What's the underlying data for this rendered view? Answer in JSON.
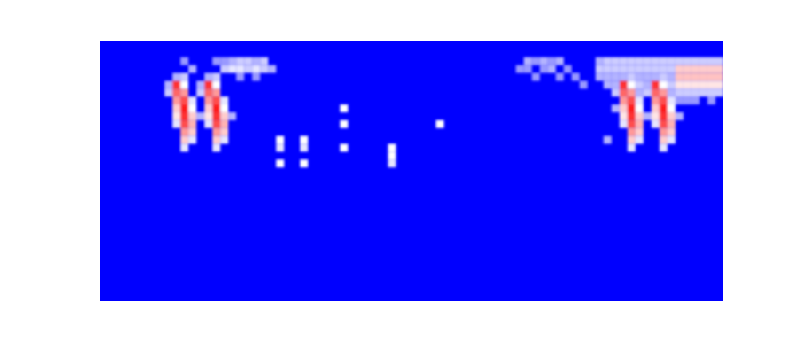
{
  "chart_data": {
    "type": "heatmap",
    "tick_labels": false,
    "xlim": [
      0,
      78
    ],
    "ylim": [
      33,
      0
    ],
    "zlim": [
      0,
      1
    ],
    "cells": [
      [
        9,
        4,
        0.35
      ],
      [
        10,
        4,
        0.4
      ],
      [
        9,
        5,
        0.9
      ],
      [
        10,
        5,
        0.5
      ],
      [
        8,
        5,
        0.35
      ],
      [
        9,
        6,
        0.8
      ],
      [
        10,
        6,
        0.7
      ],
      [
        8,
        6,
        0.4
      ],
      [
        9,
        7,
        0.7
      ],
      [
        10,
        7,
        0.85
      ],
      [
        11,
        7,
        0.45
      ],
      [
        9,
        8,
        0.6
      ],
      [
        10,
        8,
        0.95
      ],
      [
        11,
        8,
        0.5
      ],
      [
        9,
        9,
        0.55
      ],
      [
        10,
        9,
        0.9
      ],
      [
        11,
        9,
        0.6
      ],
      [
        12,
        9,
        0.35
      ],
      [
        9,
        10,
        0.45
      ],
      [
        10,
        10,
        0.85
      ],
      [
        11,
        10,
        0.65
      ],
      [
        10,
        11,
        0.7
      ],
      [
        11,
        11,
        0.6
      ],
      [
        10,
        12,
        0.6
      ],
      [
        11,
        12,
        0.45
      ],
      [
        10,
        13,
        0.45
      ],
      [
        13,
        4,
        0.35
      ],
      [
        14,
        4,
        0.4
      ],
      [
        13,
        5,
        0.9
      ],
      [
        14,
        5,
        0.5
      ],
      [
        12,
        5,
        0.35
      ],
      [
        13,
        6,
        0.8
      ],
      [
        14,
        6,
        0.7
      ],
      [
        12,
        6,
        0.4
      ],
      [
        13,
        7,
        0.7
      ],
      [
        14,
        7,
        0.85
      ],
      [
        15,
        7,
        0.45
      ],
      [
        13,
        8,
        0.6
      ],
      [
        14,
        8,
        0.95
      ],
      [
        15,
        8,
        0.5
      ],
      [
        13,
        9,
        0.55
      ],
      [
        14,
        9,
        0.9
      ],
      [
        15,
        9,
        0.6
      ],
      [
        16,
        9,
        0.35
      ],
      [
        13,
        10,
        0.45
      ],
      [
        14,
        10,
        0.85
      ],
      [
        15,
        10,
        0.65
      ],
      [
        14,
        11,
        0.7
      ],
      [
        15,
        11,
        0.6
      ],
      [
        14,
        12,
        0.6
      ],
      [
        15,
        12,
        0.45
      ],
      [
        14,
        13,
        0.45
      ],
      [
        65,
        4,
        0.35
      ],
      [
        66,
        4,
        0.4
      ],
      [
        65,
        5,
        0.9
      ],
      [
        66,
        5,
        0.5
      ],
      [
        64,
        5,
        0.35
      ],
      [
        65,
        6,
        0.8
      ],
      [
        66,
        6,
        0.7
      ],
      [
        64,
        6,
        0.4
      ],
      [
        65,
        7,
        0.7
      ],
      [
        66,
        7,
        0.85
      ],
      [
        67,
        7,
        0.45
      ],
      [
        65,
        8,
        0.6
      ],
      [
        66,
        8,
        0.95
      ],
      [
        67,
        8,
        0.5
      ],
      [
        65,
        9,
        0.55
      ],
      [
        66,
        9,
        0.9
      ],
      [
        67,
        9,
        0.6
      ],
      [
        68,
        9,
        0.35
      ],
      [
        65,
        10,
        0.45
      ],
      [
        66,
        10,
        0.85
      ],
      [
        67,
        10,
        0.65
      ],
      [
        66,
        11,
        0.7
      ],
      [
        67,
        11,
        0.6
      ],
      [
        66,
        12,
        0.6
      ],
      [
        67,
        12,
        0.45
      ],
      [
        66,
        13,
        0.45
      ],
      [
        69,
        4,
        0.35
      ],
      [
        70,
        4,
        0.4
      ],
      [
        69,
        5,
        0.9
      ],
      [
        70,
        5,
        0.5
      ],
      [
        68,
        5,
        0.35
      ],
      [
        69,
        6,
        0.8
      ],
      [
        70,
        6,
        0.7
      ],
      [
        68,
        6,
        0.4
      ],
      [
        69,
        7,
        0.7
      ],
      [
        70,
        7,
        0.85
      ],
      [
        71,
        7,
        0.45
      ],
      [
        69,
        8,
        0.6
      ],
      [
        70,
        8,
        0.95
      ],
      [
        71,
        8,
        0.5
      ],
      [
        69,
        9,
        0.55
      ],
      [
        70,
        9,
        0.9
      ],
      [
        71,
        9,
        0.6
      ],
      [
        72,
        9,
        0.35
      ],
      [
        69,
        10,
        0.45
      ],
      [
        70,
        10,
        0.85
      ],
      [
        71,
        10,
        0.65
      ],
      [
        70,
        11,
        0.7
      ],
      [
        71,
        11,
        0.6
      ],
      [
        70,
        12,
        0.6
      ],
      [
        71,
        12,
        0.45
      ],
      [
        70,
        13,
        0.45
      ],
      [
        10,
        2,
        0.3
      ],
      [
        14,
        2,
        0.3
      ],
      [
        11,
        3,
        0.35
      ],
      [
        15,
        2,
        0.3
      ],
      [
        15,
        3,
        0.4
      ],
      [
        16,
        2,
        0.35
      ],
      [
        16,
        3,
        0.45
      ],
      [
        17,
        2,
        0.4
      ],
      [
        17,
        3,
        0.45
      ],
      [
        18,
        2,
        0.4
      ],
      [
        18,
        3,
        0.4
      ],
      [
        19,
        2,
        0.35
      ],
      [
        19,
        3,
        0.45
      ],
      [
        20,
        2,
        0.4
      ],
      [
        20,
        3,
        0.4
      ],
      [
        21,
        3,
        0.35
      ],
      [
        17,
        4,
        0.3
      ],
      [
        19,
        4,
        0.3
      ],
      [
        22,
        12,
        0.5
      ],
      [
        22,
        13,
        0.45
      ],
      [
        22,
        15,
        0.5
      ],
      [
        25,
        12,
        0.5
      ],
      [
        25,
        13,
        0.45
      ],
      [
        25,
        15,
        0.5
      ],
      [
        30,
        8,
        0.5
      ],
      [
        30,
        10,
        0.5
      ],
      [
        30,
        13,
        0.5
      ],
      [
        36,
        13,
        0.5
      ],
      [
        36,
        14,
        0.5
      ],
      [
        36,
        15,
        0.45
      ],
      [
        42,
        10,
        0.5
      ],
      [
        53,
        2,
        0.35
      ],
      [
        54,
        2,
        0.3
      ],
      [
        55,
        2,
        0.35
      ],
      [
        56,
        2,
        0.3
      ],
      [
        57,
        2,
        0.35
      ],
      [
        53,
        3,
        0.3
      ],
      [
        55,
        3,
        0.3
      ],
      [
        56,
        3,
        0.35
      ],
      [
        58,
        3,
        0.3
      ],
      [
        54,
        4,
        0.3
      ],
      [
        57,
        4,
        0.3
      ],
      [
        59,
        4,
        0.3
      ],
      [
        60,
        5,
        0.3
      ],
      [
        52,
        3,
        0.3
      ],
      [
        62,
        2,
        0.35
      ],
      [
        63,
        2,
        0.4
      ],
      [
        64,
        2,
        0.4
      ],
      [
        65,
        2,
        0.4
      ],
      [
        66,
        2,
        0.4
      ],
      [
        67,
        2,
        0.4
      ],
      [
        68,
        2,
        0.4
      ],
      [
        69,
        2,
        0.4
      ],
      [
        70,
        2,
        0.4
      ],
      [
        71,
        2,
        0.4
      ],
      [
        72,
        2,
        0.4
      ],
      [
        73,
        2,
        0.4
      ],
      [
        74,
        2,
        0.4
      ],
      [
        75,
        2,
        0.4
      ],
      [
        76,
        2,
        0.4
      ],
      [
        77,
        2,
        0.4
      ],
      [
        62,
        3,
        0.4
      ],
      [
        63,
        3,
        0.4
      ],
      [
        64,
        3,
        0.4
      ],
      [
        65,
        3,
        0.4
      ],
      [
        66,
        3,
        0.4
      ],
      [
        67,
        3,
        0.4
      ],
      [
        68,
        3,
        0.4
      ],
      [
        69,
        3,
        0.4
      ],
      [
        70,
        3,
        0.4
      ],
      [
        71,
        3,
        0.4
      ],
      [
        72,
        3,
        0.6
      ],
      [
        73,
        3,
        0.6
      ],
      [
        74,
        3,
        0.6
      ],
      [
        75,
        3,
        0.6
      ],
      [
        76,
        3,
        0.6
      ],
      [
        77,
        3,
        0.6
      ],
      [
        62,
        4,
        0.35
      ],
      [
        63,
        4,
        0.35
      ],
      [
        64,
        4,
        0.35
      ],
      [
        67,
        4,
        0.35
      ],
      [
        68,
        4,
        0.35
      ],
      [
        71,
        4,
        0.35
      ],
      [
        72,
        4,
        0.62
      ],
      [
        73,
        4,
        0.62
      ],
      [
        74,
        4,
        0.62
      ],
      [
        75,
        4,
        0.62
      ],
      [
        76,
        4,
        0.62
      ],
      [
        77,
        4,
        0.62
      ],
      [
        63,
        5,
        0.35
      ],
      [
        67,
        5,
        0.4
      ],
      [
        71,
        5,
        0.4
      ],
      [
        72,
        5,
        0.55
      ],
      [
        73,
        5,
        0.55
      ],
      [
        74,
        5,
        0.55
      ],
      [
        75,
        5,
        0.55
      ],
      [
        76,
        5,
        0.55
      ],
      [
        77,
        5,
        0.55
      ],
      [
        67,
        6,
        0.35
      ],
      [
        71,
        6,
        0.35
      ],
      [
        72,
        6,
        0.4
      ],
      [
        73,
        6,
        0.4
      ],
      [
        74,
        6,
        0.4
      ],
      [
        75,
        6,
        0.4
      ],
      [
        76,
        6,
        0.4
      ],
      [
        77,
        6,
        0.4
      ],
      [
        72,
        7,
        0.3
      ],
      [
        73,
        7,
        0.3
      ],
      [
        74,
        7,
        0.3
      ],
      [
        76,
        7,
        0.3
      ],
      [
        64,
        8,
        0.35
      ],
      [
        63,
        12,
        0.35
      ]
    ]
  }
}
